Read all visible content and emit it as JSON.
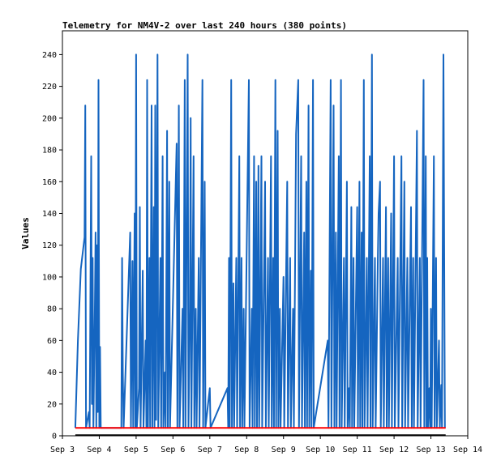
{
  "chart_data": {
    "type": "line",
    "title": "Telemetry for NM4V-2 over last 240 hours (380 points)",
    "xlabel": "",
    "ylabel": "Values",
    "x_ticks": [
      "Sep 3",
      "Sep 4",
      "Sep 5",
      "Sep 6",
      "Sep 7",
      "Sep 8",
      "Sep 9",
      "Sep 10",
      "Sep 11",
      "Sep 12",
      "Sep 13",
      "Sep 14"
    ],
    "xlim": [
      "Sep 3",
      "Sep 14"
    ],
    "ylim": [
      0,
      255
    ],
    "y_ticks": [
      0,
      20,
      40,
      60,
      80,
      100,
      120,
      140,
      160,
      180,
      200,
      220,
      240
    ],
    "grid": false,
    "colors": {
      "series": "#1565c0",
      "threshold": "#ff0000",
      "baseline": "#000000"
    },
    "series": [
      {
        "name": "",
        "x_unit": "day of September",
        "points": [
          [
            3.35,
            5
          ],
          [
            3.42,
            60
          ],
          [
            3.5,
            105
          ],
          [
            3.6,
            125
          ],
          [
            3.62,
            208
          ],
          [
            3.64,
            5
          ],
          [
            3.72,
            15
          ],
          [
            3.74,
            5
          ],
          [
            3.78,
            176
          ],
          [
            3.8,
            20
          ],
          [
            3.82,
            112
          ],
          [
            3.84,
            5
          ],
          [
            3.88,
            80
          ],
          [
            3.9,
            128
          ],
          [
            3.92,
            5
          ],
          [
            3.94,
            120
          ],
          [
            3.96,
            15
          ],
          [
            3.98,
            224
          ],
          [
            4.0,
            5
          ],
          [
            4.02,
            56
          ],
          [
            4.04,
            5
          ],
          [
            4.6,
            5
          ],
          [
            4.62,
            112
          ],
          [
            4.64,
            40
          ],
          [
            4.66,
            5
          ],
          [
            4.84,
            128
          ],
          [
            4.86,
            5
          ],
          [
            4.9,
            110
          ],
          [
            4.92,
            5
          ],
          [
            4.96,
            140
          ],
          [
            4.98,
            5
          ],
          [
            5.0,
            240
          ],
          [
            5.02,
            5
          ],
          [
            5.08,
            30
          ],
          [
            5.1,
            144
          ],
          [
            5.12,
            5
          ],
          [
            5.18,
            104
          ],
          [
            5.2,
            5
          ],
          [
            5.26,
            60
          ],
          [
            5.28,
            5
          ],
          [
            5.3,
            224
          ],
          [
            5.32,
            5
          ],
          [
            5.36,
            112
          ],
          [
            5.38,
            5
          ],
          [
            5.42,
            208
          ],
          [
            5.44,
            5
          ],
          [
            5.48,
            144
          ],
          [
            5.5,
            5
          ],
          [
            5.52,
            208
          ],
          [
            5.54,
            10
          ],
          [
            5.58,
            240
          ],
          [
            5.6,
            5
          ],
          [
            5.66,
            112
          ],
          [
            5.68,
            5
          ],
          [
            5.72,
            176
          ],
          [
            5.74,
            5
          ],
          [
            5.78,
            40
          ],
          [
            5.8,
            5
          ],
          [
            5.84,
            192
          ],
          [
            5.86,
            5
          ],
          [
            5.9,
            160
          ],
          [
            5.92,
            5
          ],
          [
            6.1,
            184
          ],
          [
            6.12,
            5
          ],
          [
            6.16,
            208
          ],
          [
            6.18,
            5
          ],
          [
            6.26,
            80
          ],
          [
            6.28,
            5
          ],
          [
            6.32,
            224
          ],
          [
            6.34,
            5
          ],
          [
            6.4,
            240
          ],
          [
            6.42,
            5
          ],
          [
            6.46,
            80
          ],
          [
            6.48,
            200
          ],
          [
            6.5,
            5
          ],
          [
            6.56,
            176
          ],
          [
            6.58,
            5
          ],
          [
            6.62,
            80
          ],
          [
            6.64,
            5
          ],
          [
            6.7,
            112
          ],
          [
            6.72,
            5
          ],
          [
            6.8,
            224
          ],
          [
            6.82,
            5
          ],
          [
            6.86,
            160
          ],
          [
            6.88,
            5
          ],
          [
            7.0,
            30
          ],
          [
            7.02,
            5
          ],
          [
            7.48,
            30
          ],
          [
            7.5,
            5
          ],
          [
            7.52,
            112
          ],
          [
            7.54,
            5
          ],
          [
            7.58,
            224
          ],
          [
            7.6,
            5
          ],
          [
            7.64,
            96
          ],
          [
            7.66,
            5
          ],
          [
            7.72,
            112
          ],
          [
            7.74,
            5
          ],
          [
            7.8,
            176
          ],
          [
            7.82,
            5
          ],
          [
            7.86,
            112
          ],
          [
            7.88,
            5
          ],
          [
            7.92,
            80
          ],
          [
            7.94,
            5
          ],
          [
            8.06,
            224
          ],
          [
            8.08,
            5
          ],
          [
            8.14,
            80
          ],
          [
            8.16,
            5
          ],
          [
            8.2,
            176
          ],
          [
            8.22,
            5
          ],
          [
            8.26,
            160
          ],
          [
            8.28,
            5
          ],
          [
            8.3,
            60
          ],
          [
            8.32,
            170
          ],
          [
            8.34,
            5
          ],
          [
            8.4,
            176
          ],
          [
            8.42,
            5
          ],
          [
            8.5,
            160
          ],
          [
            8.52,
            5
          ],
          [
            8.58,
            112
          ],
          [
            8.6,
            5
          ],
          [
            8.66,
            176
          ],
          [
            8.68,
            5
          ],
          [
            8.72,
            112
          ],
          [
            8.74,
            5
          ],
          [
            8.78,
            224
          ],
          [
            8.8,
            5
          ],
          [
            8.84,
            192
          ],
          [
            8.86,
            5
          ],
          [
            8.9,
            80
          ],
          [
            8.92,
            5
          ],
          [
            9.0,
            100
          ],
          [
            9.02,
            5
          ],
          [
            9.1,
            160
          ],
          [
            9.12,
            5
          ],
          [
            9.18,
            112
          ],
          [
            9.2,
            5
          ],
          [
            9.26,
            80
          ],
          [
            9.28,
            5
          ],
          [
            9.34,
            190
          ],
          [
            9.4,
            224
          ],
          [
            9.42,
            5
          ],
          [
            9.48,
            176
          ],
          [
            9.5,
            5
          ],
          [
            9.56,
            128
          ],
          [
            9.58,
            5
          ],
          [
            9.62,
            160
          ],
          [
            9.64,
            5
          ],
          [
            9.68,
            208
          ],
          [
            9.7,
            5
          ],
          [
            9.74,
            104
          ],
          [
            9.76,
            5
          ],
          [
            9.8,
            224
          ],
          [
            9.82,
            5
          ],
          [
            10.2,
            60
          ],
          [
            10.22,
            5
          ],
          [
            10.28,
            224
          ],
          [
            10.3,
            5
          ],
          [
            10.36,
            208
          ],
          [
            10.38,
            5
          ],
          [
            10.42,
            128
          ],
          [
            10.44,
            5
          ],
          [
            10.5,
            176
          ],
          [
            10.52,
            5
          ],
          [
            10.56,
            224
          ],
          [
            10.58,
            5
          ],
          [
            10.64,
            112
          ],
          [
            10.66,
            5
          ],
          [
            10.72,
            160
          ],
          [
            10.74,
            5
          ],
          [
            10.78,
            30
          ],
          [
            10.8,
            5
          ],
          [
            10.84,
            144
          ],
          [
            10.86,
            5
          ],
          [
            10.9,
            112
          ],
          [
            10.92,
            5
          ],
          [
            11.0,
            144
          ],
          [
            11.02,
            5
          ],
          [
            11.06,
            160
          ],
          [
            11.08,
            5
          ],
          [
            11.12,
            128
          ],
          [
            11.14,
            5
          ],
          [
            11.18,
            224
          ],
          [
            11.2,
            5
          ],
          [
            11.26,
            112
          ],
          [
            11.28,
            5
          ],
          [
            11.34,
            176
          ],
          [
            11.36,
            5
          ],
          [
            11.4,
            240
          ],
          [
            11.42,
            5
          ],
          [
            11.48,
            112
          ],
          [
            11.5,
            5
          ],
          [
            11.56,
            112
          ],
          [
            11.58,
            140
          ],
          [
            11.62,
            160
          ],
          [
            11.64,
            5
          ],
          [
            11.7,
            112
          ],
          [
            11.72,
            5
          ],
          [
            11.78,
            144
          ],
          [
            11.8,
            5
          ],
          [
            11.84,
            112
          ],
          [
            11.86,
            5
          ],
          [
            11.92,
            140
          ],
          [
            11.94,
            5
          ],
          [
            12.0,
            176
          ],
          [
            12.02,
            5
          ],
          [
            12.1,
            112
          ],
          [
            12.12,
            5
          ],
          [
            12.2,
            176
          ],
          [
            12.22,
            5
          ],
          [
            12.28,
            160
          ],
          [
            12.3,
            5
          ],
          [
            12.36,
            112
          ],
          [
            12.38,
            5
          ],
          [
            12.46,
            144
          ],
          [
            12.48,
            5
          ],
          [
            12.52,
            112
          ],
          [
            12.54,
            5
          ],
          [
            12.62,
            192
          ],
          [
            12.64,
            5
          ],
          [
            12.7,
            112
          ],
          [
            12.72,
            5
          ],
          [
            12.8,
            224
          ],
          [
            12.82,
            5
          ],
          [
            12.86,
            176
          ],
          [
            12.88,
            5
          ],
          [
            12.9,
            112
          ],
          [
            12.92,
            5
          ],
          [
            12.96,
            30
          ],
          [
            12.98,
            5
          ],
          [
            13.0,
            80
          ],
          [
            13.02,
            5
          ],
          [
            13.08,
            176
          ],
          [
            13.1,
            5
          ],
          [
            13.14,
            112
          ],
          [
            13.16,
            5
          ],
          [
            13.22,
            60
          ],
          [
            13.24,
            5
          ],
          [
            13.28,
            32
          ],
          [
            13.3,
            5
          ],
          [
            13.34,
            240
          ],
          [
            13.36,
            120
          ],
          [
            13.38,
            5
          ]
        ]
      }
    ],
    "reference_lines": [
      {
        "name": "",
        "value": 5,
        "x_from": 3.35,
        "x_to": 13.4,
        "color": "#ff0000"
      }
    ]
  }
}
